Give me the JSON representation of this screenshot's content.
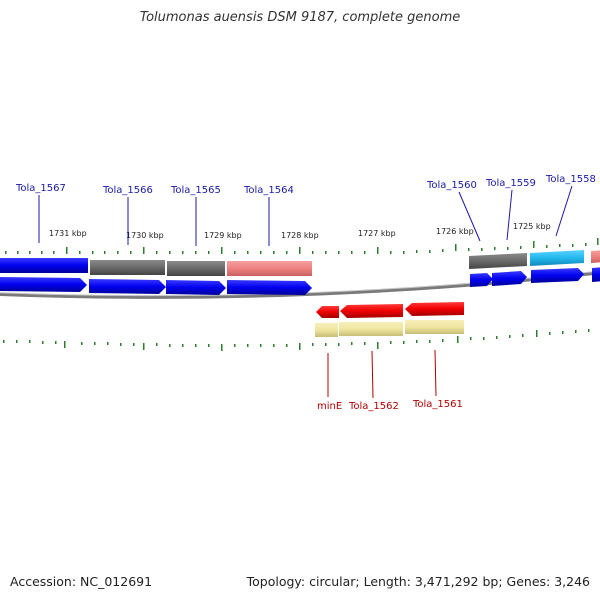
{
  "title": "Tolumonas auensis DSM 9187, complete genome",
  "footer": {
    "accession": "Accession: NC_012691",
    "summary": "Topology: circular; Length: 3,471,292 bp; Genes: 3,246"
  },
  "colors": {
    "forward_label": "#1a1aa6",
    "reverse_label": "#b30000",
    "blue": "#0000ee",
    "gray": "#6e6e6e",
    "pink": "#f08080",
    "cyan": "#22b8ee",
    "red": "#ee0000",
    "yellow": "#f0e6a0",
    "tick": "#2e7d2e",
    "backbone": "#808080"
  },
  "scale_labels": [
    "1731 kbp",
    "1730 kbp",
    "1729 kbp",
    "1728 kbp",
    "1727 kbp",
    "1726 kbp",
    "1725 kbp"
  ],
  "forward_gene_labels": [
    "Tola_1567",
    "Tola_1566",
    "Tola_1565",
    "Tola_1564",
    "Tola_1560",
    "Tola_1559",
    "Tola_1558"
  ],
  "reverse_gene_labels": [
    "minE",
    "Tola_1562",
    "Tola_1561"
  ]
}
